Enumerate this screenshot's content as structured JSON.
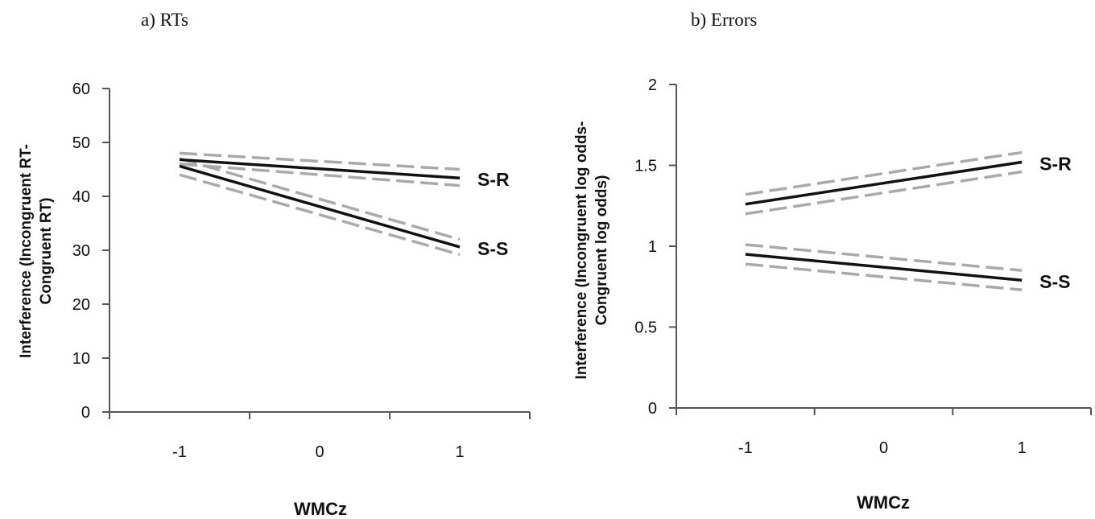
{
  "chart_data": [
    {
      "type": "line",
      "title": "a) RTs",
      "xlabel": "WMCz",
      "ylabel_line1": "Interference  (Incongruent RT-",
      "ylabel_line2": "Congruent RT)",
      "xlim": [
        -1.5,
        1.5
      ],
      "x_tick_labels": [
        "-1",
        "0",
        "1"
      ],
      "ylim": [
        0,
        60
      ],
      "y_ticks": [
        0,
        10,
        20,
        30,
        40,
        50,
        60
      ],
      "y_tick_labels": [
        "0",
        "10",
        "20",
        "30",
        "40",
        "50",
        "60"
      ],
      "series": [
        {
          "name": "S-R",
          "color": "#111111",
          "x": [
            -1,
            1
          ],
          "values": [
            46.8,
            43.4
          ],
          "ci_upper": [
            48.0,
            45.0
          ],
          "ci_lower": [
            46.0,
            42.0
          ]
        },
        {
          "name": "S-S",
          "color": "#111111",
          "x": [
            -1,
            1
          ],
          "values": [
            45.6,
            30.6
          ],
          "ci_upper": [
            47.0,
            32.0
          ],
          "ci_lower": [
            44.0,
            29.2
          ]
        }
      ],
      "ci_color": "#aaaaaa"
    },
    {
      "type": "line",
      "title": "b) Errors",
      "xlabel": "WMCz",
      "ylabel_line1": "Interference  (Incongruent log odds-",
      "ylabel_line2": "Congruent log odds)",
      "xlim": [
        -1.5,
        1.5
      ],
      "x_tick_labels": [
        "-1",
        "0",
        "1"
      ],
      "ylim": [
        0,
        2
      ],
      "y_ticks": [
        0,
        0.5,
        1,
        1.5,
        2
      ],
      "y_tick_labels": [
        "0",
        "0.5",
        "1",
        "1.5",
        "2"
      ],
      "series": [
        {
          "name": "S-R",
          "color": "#111111",
          "x": [
            -1,
            1
          ],
          "values": [
            1.26,
            1.52
          ],
          "ci_upper": [
            1.32,
            1.58
          ],
          "ci_lower": [
            1.2,
            1.46
          ]
        },
        {
          "name": "S-S",
          "color": "#111111",
          "x": [
            -1,
            1
          ],
          "values": [
            0.95,
            0.79
          ],
          "ci_upper": [
            1.01,
            0.85
          ],
          "ci_lower": [
            0.89,
            0.73
          ]
        }
      ],
      "ci_color": "#aaaaaa"
    }
  ]
}
